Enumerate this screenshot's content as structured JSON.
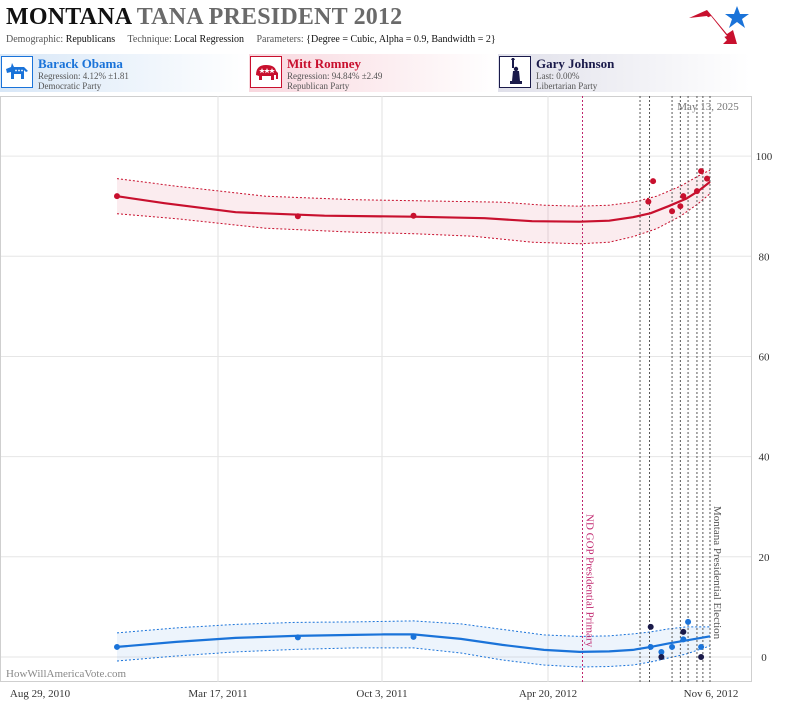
{
  "header": {
    "title_state": "MONTANA",
    "title_rest": "TANA PRESIDENT 2012",
    "demographic_label": "Demographic:",
    "demographic_value": "Republicans",
    "technique_label": "Technique:",
    "technique_value": "Local Regression",
    "parameters_label": "Parameters:",
    "parameters_value": "{Degree = Cubic, Alpha = 0.9, Bandwidth = 2}"
  },
  "candidates": [
    {
      "name": "Barack Obama",
      "stat": "Regression: 4.12% ±1.81",
      "party": "Democratic Party",
      "color": "#1a73d9",
      "icon": "donkey-icon"
    },
    {
      "name": "Mitt Romney",
      "stat": "Regression: 94.84% ±2.49",
      "party": "Republican Party",
      "color": "#c8102e",
      "icon": "elephant-icon"
    },
    {
      "name": "Gary Johnson",
      "stat": "Last: 0.00%",
      "party": "Libertarian Party",
      "color": "#1a1a4a",
      "icon": "statue-of-liberty-icon"
    }
  ],
  "watermark": "HowWillAmericaVote.com",
  "date_stamp": "May 13, 2025",
  "chart_data": {
    "type": "line",
    "x_axis": {
      "ticks": [
        "Aug 29, 2010",
        "Mar 17, 2011",
        "Oct 3, 2011",
        "Apr 20, 2012",
        "Nov 6, 2012"
      ]
    },
    "y_axis": {
      "ticks": [
        0,
        20,
        40,
        60,
        80,
        100
      ],
      "ylim": [
        -5,
        112
      ]
    },
    "series": [
      {
        "name": "Mitt Romney",
        "color": "#c8102e",
        "trend": [
          [
            0,
            92
          ],
          [
            0.08,
            90.6
          ],
          [
            0.2,
            88.8
          ],
          [
            0.35,
            88.1
          ],
          [
            0.5,
            87.9
          ],
          [
            0.62,
            87.6
          ],
          [
            0.7,
            87.0
          ],
          [
            0.78,
            86.9
          ],
          [
            0.83,
            87.1
          ],
          [
            0.87,
            87.8
          ],
          [
            0.9,
            88.6
          ],
          [
            0.93,
            90.0
          ],
          [
            0.96,
            91.5
          ],
          [
            0.98,
            93.0
          ],
          [
            1.0,
            94.84
          ]
        ],
        "upper": [
          [
            0,
            95.5
          ],
          [
            0.1,
            94.0
          ],
          [
            0.25,
            92.0
          ],
          [
            0.4,
            91.3
          ],
          [
            0.55,
            91.0
          ],
          [
            0.65,
            90.8
          ],
          [
            0.72,
            90.2
          ],
          [
            0.78,
            90.0
          ],
          [
            0.83,
            90.2
          ],
          [
            0.87,
            90.8
          ],
          [
            0.91,
            92.0
          ],
          [
            0.95,
            94.0
          ],
          [
            0.98,
            96.0
          ],
          [
            1.0,
            97.2
          ]
        ],
        "lower": [
          [
            0,
            88.5
          ],
          [
            0.1,
            87.5
          ],
          [
            0.25,
            85.6
          ],
          [
            0.4,
            84.8
          ],
          [
            0.5,
            84.5
          ],
          [
            0.6,
            84.0
          ],
          [
            0.7,
            82.8
          ],
          [
            0.78,
            82.5
          ],
          [
            0.83,
            82.8
          ],
          [
            0.87,
            83.9
          ],
          [
            0.91,
            85.5
          ],
          [
            0.95,
            88.0
          ],
          [
            0.98,
            90.5
          ],
          [
            1.0,
            92.5
          ]
        ],
        "points": [
          [
            0,
            92
          ],
          [
            0.305,
            88
          ],
          [
            0.5,
            88.1
          ],
          [
            0.896,
            90.9
          ],
          [
            0.904,
            95
          ],
          [
            0.936,
            89
          ],
          [
            0.95,
            90
          ],
          [
            0.955,
            92
          ],
          [
            0.978,
            93
          ],
          [
            0.985,
            97
          ],
          [
            0.995,
            95.5
          ]
        ]
      },
      {
        "name": "Barack Obama",
        "color": "#1a73d9",
        "trend": [
          [
            0,
            2.0
          ],
          [
            0.1,
            3.0
          ],
          [
            0.2,
            3.8
          ],
          [
            0.3,
            4.2
          ],
          [
            0.4,
            4.4
          ],
          [
            0.45,
            4.5
          ],
          [
            0.5,
            4.5
          ],
          [
            0.58,
            3.6
          ],
          [
            0.65,
            2.4
          ],
          [
            0.72,
            1.4
          ],
          [
            0.78,
            1.0
          ],
          [
            0.83,
            1.1
          ],
          [
            0.87,
            1.4
          ],
          [
            0.9,
            2.0
          ],
          [
            0.93,
            2.7
          ],
          [
            0.96,
            3.3
          ],
          [
            1.0,
            4.12
          ]
        ],
        "upper": [
          [
            0,
            4.8
          ],
          [
            0.1,
            5.8
          ],
          [
            0.2,
            6.5
          ],
          [
            0.3,
            6.9
          ],
          [
            0.4,
            7.0
          ],
          [
            0.5,
            7.2
          ],
          [
            0.58,
            6.6
          ],
          [
            0.65,
            5.5
          ],
          [
            0.72,
            4.4
          ],
          [
            0.78,
            4.1
          ],
          [
            0.83,
            4.2
          ],
          [
            0.87,
            4.6
          ],
          [
            0.9,
            5.0
          ],
          [
            0.93,
            5.6
          ],
          [
            0.96,
            6.0
          ],
          [
            1.0,
            6.0
          ]
        ],
        "lower": [
          [
            0,
            -0.8
          ],
          [
            0.1,
            0.2
          ],
          [
            0.2,
            1.0
          ],
          [
            0.3,
            1.5
          ],
          [
            0.4,
            1.8
          ],
          [
            0.5,
            1.8
          ],
          [
            0.58,
            0.8
          ],
          [
            0.65,
            -0.6
          ],
          [
            0.72,
            -1.6
          ],
          [
            0.78,
            -2.0
          ],
          [
            0.83,
            -1.9
          ],
          [
            0.87,
            -1.6
          ],
          [
            0.9,
            -1.0
          ],
          [
            0.93,
            -0.2
          ],
          [
            0.96,
            0.6
          ],
          [
            1.0,
            2.2
          ]
        ],
        "points": [
          [
            0,
            2
          ],
          [
            0.305,
            3.9
          ],
          [
            0.5,
            4
          ],
          [
            0.9,
            2
          ],
          [
            0.918,
            1
          ],
          [
            0.936,
            2
          ],
          [
            0.955,
            3.5
          ],
          [
            0.963,
            7
          ],
          [
            0.985,
            2
          ]
        ]
      },
      {
        "name": "Gary Johnson",
        "color": "#1a1a4a",
        "points": [
          [
            0.9,
            6
          ],
          [
            0.918,
            0
          ],
          [
            0.955,
            5
          ],
          [
            0.985,
            0
          ]
        ]
      }
    ],
    "events": [
      {
        "label": "ND GOP Presidential Primary",
        "x": 0.785,
        "color": "#c0266e"
      },
      {
        "label": "Montana Presidential Election",
        "x": 1.0,
        "color": "#555555"
      }
    ],
    "poll_dates_x": [
      0.882,
      0.898,
      0.936,
      0.95,
      0.963,
      0.978,
      0.988
    ]
  }
}
